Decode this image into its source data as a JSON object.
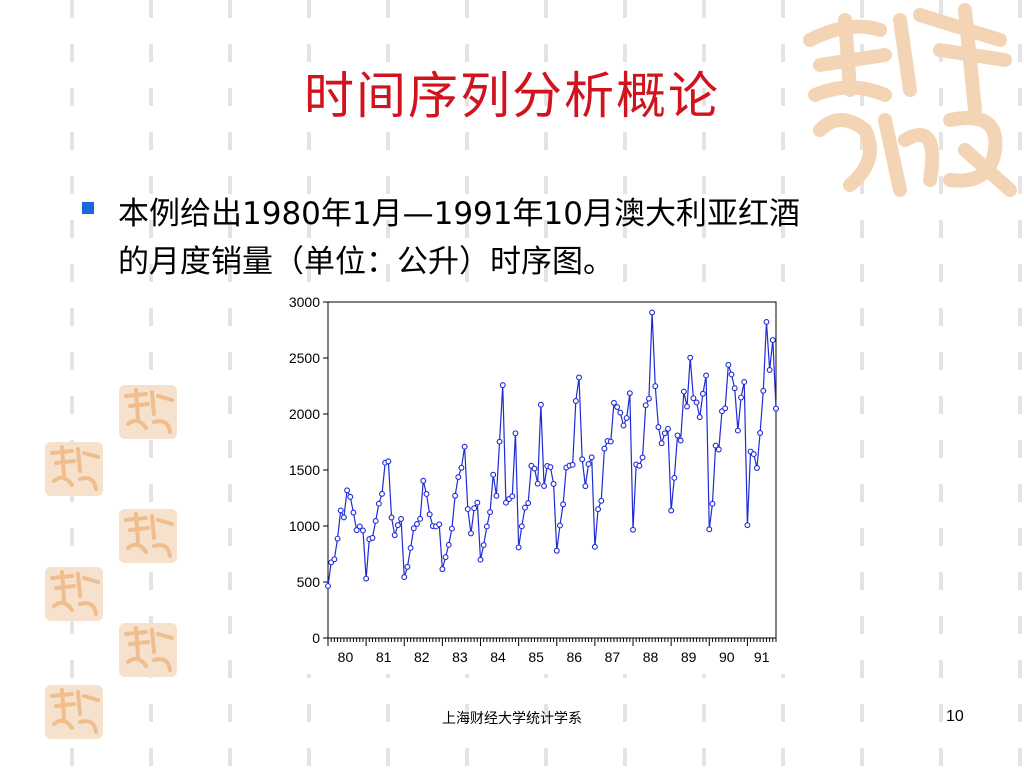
{
  "slide": {
    "title": "时间序列分析概论",
    "bullet_line1": "本例给出1980年1月—1991年10月澳大利亚红酒",
    "bullet_line2": "的月度销量（单位：公升）时序图。",
    "footer": "上海财经大学统计学系",
    "page_number": "10",
    "colors": {
      "title": "#d0131d",
      "bullet": "#1b66d6",
      "line": "#1f2bd6",
      "seal": "#f3d4b4"
    },
    "decoration_text": "吉祥如意"
  },
  "chart_data": {
    "type": "line",
    "title": "",
    "xlabel": "",
    "ylabel": "",
    "ylim": [
      0,
      3000
    ],
    "yticks": [
      0,
      500,
      1000,
      1500,
      2000,
      2500,
      3000
    ],
    "ytick_labels": [
      "0",
      "500",
      "1000",
      "1500",
      "2000",
      "2500",
      "3000"
    ],
    "xtick_labels": [
      "80",
      "81",
      "82",
      "83",
      "84",
      "85",
      "86",
      "87",
      "88",
      "89",
      "90",
      "91"
    ],
    "x_start_year": 80,
    "grid": false,
    "marker": "circle",
    "series": [
      {
        "values": [
          464,
          675,
          703,
          887,
          1139,
          1077,
          1318,
          1260,
          1120,
          963,
          996,
          960,
          530,
          883,
          894,
          1045,
          1199,
          1287,
          1565,
          1577,
          1076,
          918,
          1008,
          1063,
          544,
          635,
          804,
          980,
          1018,
          1064,
          1404,
          1286,
          1104,
          999,
          996,
          1015,
          615,
          722,
          832,
          977,
          1270,
          1437,
          1520,
          1708,
          1151,
          934,
          1159,
          1209,
          699,
          830,
          996,
          1124,
          1458,
          1270,
          1753,
          2258,
          1208,
          1241,
          1265,
          1828,
          809,
          997,
          1164,
          1205,
          1538,
          1513,
          1378,
          2083,
          1357,
          1536,
          1526,
          1376,
          779,
          1005,
          1193,
          1522,
          1539,
          1546,
          2116,
          2326,
          1596,
          1356,
          1553,
          1613,
          814,
          1150,
          1225,
          1691,
          1759,
          1754,
          2100,
          2062,
          2012,
          1897,
          1964,
          2186,
          966,
          1549,
          1538,
          1612,
          2078,
          2137,
          2907,
          2249,
          1883,
          1739,
          1828,
          1868,
          1138,
          1430,
          1809,
          1763,
          2200,
          2067,
          2503,
          2141,
          2103,
          1972,
          2181,
          2344,
          970,
          1199,
          1718,
          1683,
          2025,
          2051,
          2439,
          2353,
          2230,
          1852,
          2147,
          2286,
          1007,
          1665,
          1642,
          1518,
          1831,
          2207,
          2822,
          2393,
          2660,
          2048
        ]
      }
    ]
  }
}
